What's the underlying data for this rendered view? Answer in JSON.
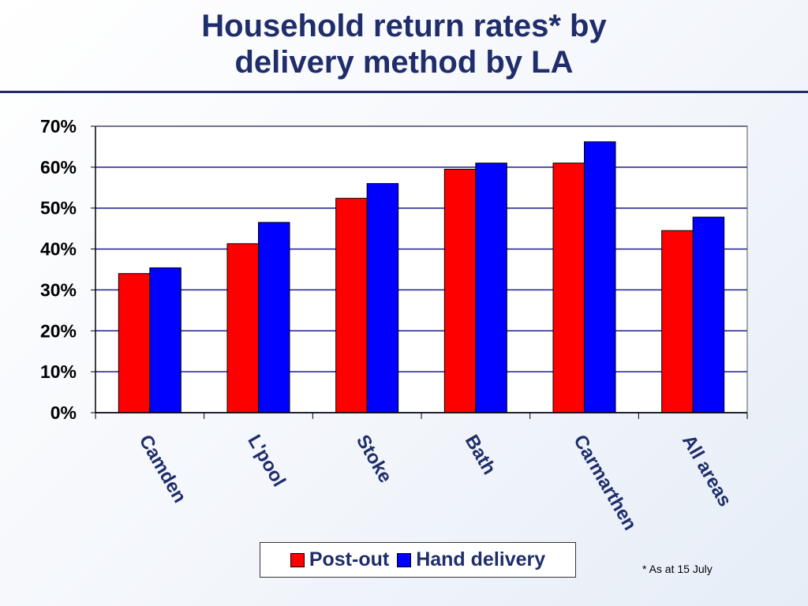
{
  "title_line1": "Household return rates* by",
  "title_line2": "delivery method by LA",
  "footnote": "* As at 15 July",
  "colors": {
    "post_out": "#ff0000",
    "hand_delivery": "#0000ff",
    "title": "#1f2d6b"
  },
  "chart_data": {
    "type": "bar",
    "title": "Household return rates* by delivery method by LA",
    "xlabel": "",
    "ylabel": "",
    "categories": [
      "Camden",
      "L'pool",
      "Stoke",
      "Bath",
      "Carmarthen",
      "All areas"
    ],
    "series": [
      {
        "name": "Post-out",
        "values": [
          34,
          41.3,
          52.4,
          59.5,
          61,
          44.5
        ]
      },
      {
        "name": "Hand delivery",
        "values": [
          35.4,
          46.5,
          56,
          61,
          66.2,
          47.8
        ]
      }
    ],
    "ylim": [
      0,
      70
    ],
    "yticks": [
      "0%",
      "10%",
      "20%",
      "30%",
      "40%",
      "50%",
      "60%",
      "70%"
    ],
    "grid": true,
    "legend_position": "bottom"
  }
}
